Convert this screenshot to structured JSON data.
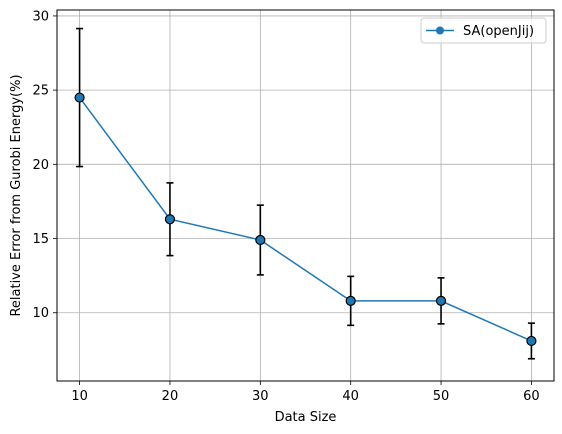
{
  "colors": {
    "series": "#1f77b4",
    "errorbar": "#000000",
    "marker_edge": "#000000",
    "grid": "#b0b0b0",
    "axes": "#000000",
    "legend_edge": "#cccccc"
  },
  "chart_data": {
    "type": "line",
    "title": "",
    "xlabel": "Data Size",
    "ylabel": "Relative Error from Gurobi Energy(%)",
    "xlim": [
      7.5,
      62.5
    ],
    "ylim": [
      5.4,
      30.4
    ],
    "xticks": [
      10,
      20,
      30,
      40,
      50,
      60
    ],
    "yticks": [
      10,
      15,
      20,
      25,
      30
    ],
    "grid": true,
    "legend_position": "top-right",
    "series": [
      {
        "name": "SA(openJij)",
        "x": [
          10,
          20,
          30,
          40,
          50,
          60
        ],
        "y": [
          24.5,
          16.3,
          14.9,
          10.8,
          10.8,
          8.1
        ],
        "err": [
          4.65,
          2.45,
          2.35,
          1.65,
          1.55,
          1.2
        ],
        "marker": "circle"
      }
    ]
  }
}
